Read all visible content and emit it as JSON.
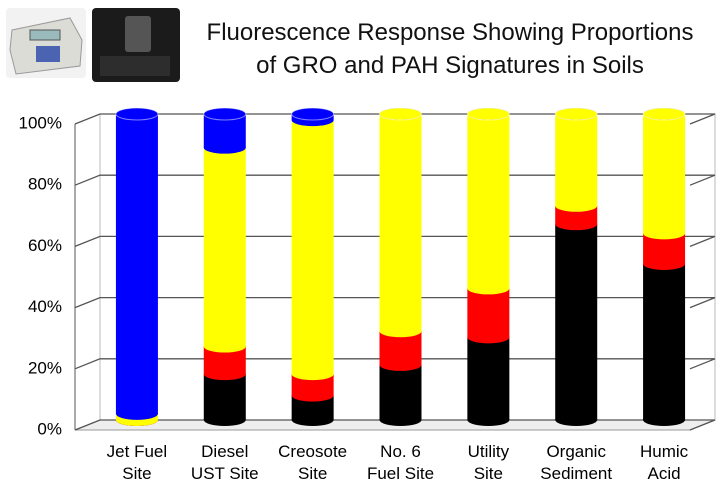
{
  "chart_data": {
    "type": "stacked-cylinder",
    "title": "Fluorescence Response Showing Proportions\nof GRO and PAH Signatures in Soils",
    "categories": [
      "Jet Fuel\nSite",
      "Diesel\nUST Site",
      "Creosote\nSite",
      "No. 6\nFuel Site",
      "Utility\nSite",
      "Organic\nSediment",
      "Humic\nAcid"
    ],
    "series": [
      {
        "color": "#000000",
        "values": [
          0,
          15,
          8,
          18,
          27,
          64,
          51
        ]
      },
      {
        "color": "#ff0000",
        "values": [
          0,
          9,
          7,
          11,
          16,
          6,
          10
        ]
      },
      {
        "color": "#ffff00",
        "values": [
          2,
          65,
          83,
          71,
          57,
          30,
          39
        ]
      },
      {
        "color": "#0000ff",
        "values": [
          98,
          11,
          2,
          0,
          0,
          0,
          0
        ]
      }
    ],
    "ylim": [
      0,
      100
    ],
    "yticks": [
      {
        "value": 0,
        "label": "0%"
      },
      {
        "value": 20,
        "label": "20%"
      },
      {
        "value": 40,
        "label": "40%"
      },
      {
        "value": 60,
        "label": "60%"
      },
      {
        "value": 80,
        "label": "80%"
      },
      {
        "value": 100,
        "label": "100%"
      }
    ],
    "grid": true
  }
}
